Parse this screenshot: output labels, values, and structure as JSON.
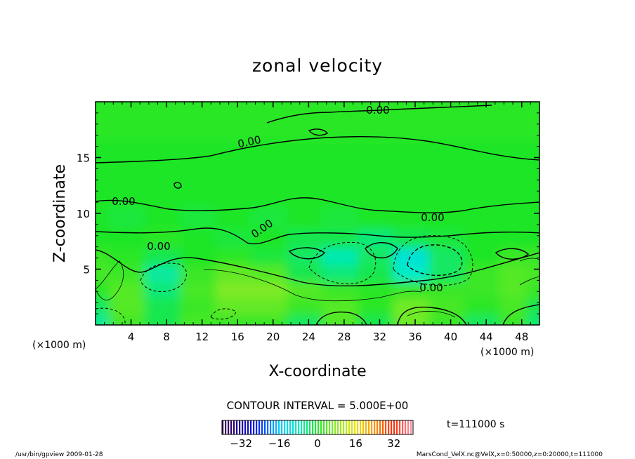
{
  "chart_data": {
    "type": "heatmap",
    "title": "zonal velocity",
    "xlabel": "X-coordinate",
    "ylabel": "Z-coordinate",
    "x_unit_left": "(×1000 m)",
    "x_unit_right": "(×1000 m)",
    "xlim": [
      0,
      50
    ],
    "ylim": [
      0,
      20
    ],
    "x_ticks": [
      4,
      8,
      12,
      16,
      20,
      24,
      28,
      32,
      36,
      40,
      44,
      48
    ],
    "y_ticks": [
      5,
      10,
      15
    ],
    "contour_interval_label": "CONTOUR INTERVAL = 5.000E+00",
    "time_label": "t=111000 s",
    "colorbar_range": [
      -40,
      40
    ],
    "colorbar_ticks": [
      -32,
      -16,
      0,
      16,
      32
    ],
    "zero_contour_label": "0.00",
    "field": {
      "x": [
        0,
        4,
        8,
        12,
        16,
        20,
        24,
        28,
        32,
        36,
        40,
        44,
        48,
        50
      ],
      "z": [
        0.5,
        2,
        3.5,
        5,
        6.5,
        8,
        10,
        12,
        14,
        16,
        18,
        20
      ],
      "values": [
        [
          -6,
          3,
          -2,
          3,
          2,
          2,
          -3,
          4,
          -2,
          6,
          2,
          -3,
          2,
          -4
        ],
        [
          -3,
          4,
          -2,
          2,
          5,
          5,
          2,
          4,
          1,
          6,
          3,
          1,
          3,
          -2
        ],
        [
          1,
          4,
          -4,
          3,
          7,
          7,
          4,
          2,
          1,
          2,
          2,
          2,
          4,
          2
        ],
        [
          3,
          2,
          -6,
          2,
          5,
          4,
          -2,
          -4,
          -2,
          -8,
          -3,
          2,
          4,
          3
        ],
        [
          2,
          1,
          -2,
          0,
          1,
          -1,
          -3,
          -7,
          -3,
          -10,
          -3,
          0,
          2,
          2
        ],
        [
          0,
          0,
          1,
          0,
          -1,
          0,
          -2,
          -2,
          -4,
          -2,
          -1,
          0,
          0,
          0
        ],
        [
          0,
          -1,
          0,
          -1,
          0,
          -1,
          0,
          -1,
          0,
          0,
          0,
          0,
          0,
          0
        ],
        [
          0,
          0,
          0,
          0,
          0,
          0,
          0,
          0,
          0,
          0,
          0,
          0,
          0,
          0
        ],
        [
          0,
          0,
          0,
          0,
          0,
          0,
          0,
          0,
          0,
          0,
          0,
          0,
          0,
          0
        ],
        [
          0,
          0,
          0,
          0,
          0,
          0,
          0,
          0,
          0,
          0,
          0,
          0,
          0,
          0
        ],
        [
          1,
          1,
          1,
          1,
          1,
          1,
          1,
          1,
          1,
          1,
          1,
          1,
          1,
          1
        ],
        [
          1,
          1,
          1,
          1,
          1,
          1,
          1,
          1,
          1,
          1,
          1,
          1,
          1,
          1
        ]
      ]
    }
  },
  "footer": {
    "left": "/usr/bin/gpview  2009-01-28",
    "right": "MarsCond_VelX.nc@VelX,x=0:50000,z=0:20000,t=111000"
  }
}
